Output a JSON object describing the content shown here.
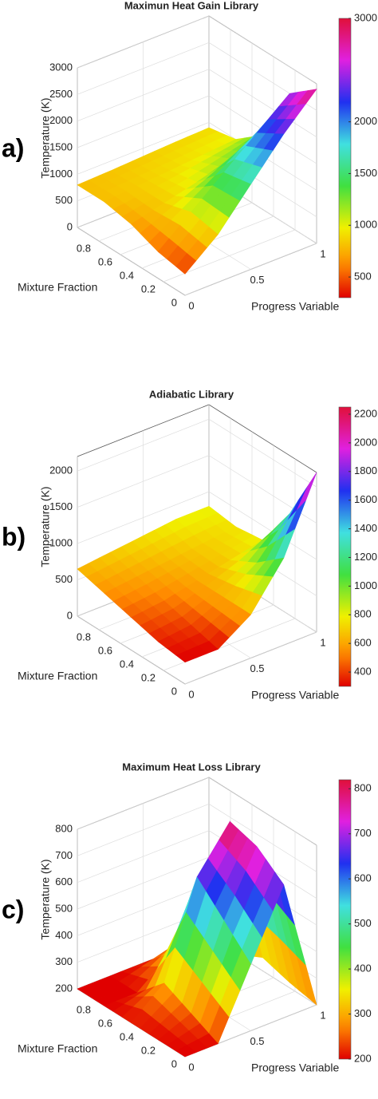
{
  "chart_data": [
    {
      "type": "surface",
      "panel_label": "a)",
      "title": "Maximun Heat Gain Library",
      "xlabel": "Progress Variable",
      "ylabel": "Mixture Fraction",
      "zlabel": "Temperature (K)",
      "x": [
        0,
        0.25,
        0.5,
        0.75,
        1
      ],
      "y": [
        0,
        0.25,
        0.5,
        0.75,
        1
      ],
      "z": [
        [
          400,
          900,
          1600,
          2300,
          2900
        ],
        [
          500,
          1000,
          1500,
          2000,
          2500
        ],
        [
          700,
          850,
          1000,
          1200,
          1400
        ],
        [
          800,
          850,
          900,
          950,
          1000
        ],
        [
          800,
          820,
          850,
          880,
          900
        ]
      ],
      "xlim": [
        0,
        1
      ],
      "ylim": [
        0,
        1
      ],
      "zlim": [
        0,
        3000
      ],
      "xticks": [
        0,
        0.5,
        1
      ],
      "yticks": [
        0,
        0.2,
        0.4,
        0.6,
        0.8
      ],
      "zticks": [
        0,
        500,
        1000,
        1500,
        2000,
        2500,
        3000
      ],
      "clim": [
        300,
        3000
      ],
      "cticks": [
        3000,
        2000,
        1500,
        1000,
        500
      ],
      "grid": true
    },
    {
      "type": "surface",
      "panel_label": "b)",
      "title": "Adiabatic Library",
      "xlabel": "Progress Variable",
      "ylabel": "Mixture Fraction",
      "zlabel": "Temperature (K)",
      "x": [
        0,
        0.25,
        0.5,
        0.75,
        1
      ],
      "y": [
        0,
        0.25,
        0.5,
        0.75,
        1
      ],
      "z": [
        [
          300,
          300,
          600,
          1200,
          2200
        ],
        [
          350,
          400,
          600,
          900,
          1400
        ],
        [
          450,
          500,
          600,
          700,
          800
        ],
        [
          550,
          600,
          650,
          700,
          750
        ],
        [
          650,
          700,
          750,
          800,
          800
        ]
      ],
      "xlim": [
        0,
        1
      ],
      "ylim": [
        0,
        1
      ],
      "zlim": [
        0,
        2200
      ],
      "xticks": [
        0,
        0.5,
        1
      ],
      "yticks": [
        0,
        0.2,
        0.4,
        0.6,
        0.8
      ],
      "zticks": [
        0,
        500,
        1000,
        1500,
        2000
      ],
      "clim": [
        300,
        2250
      ],
      "cticks": [
        2200,
        2000,
        1800,
        1600,
        1400,
        1200,
        1000,
        800,
        600,
        400
      ],
      "grid": true
    },
    {
      "type": "surface",
      "panel_label": "c)",
      "title": "Maximum Heat Loss Library",
      "xlabel": "Progress Variable",
      "ylabel": "Mixture Fraction",
      "zlabel": "Temperature (K)",
      "x": [
        0,
        0.25,
        0.5,
        0.75,
        1
      ],
      "y": [
        0,
        0.25,
        0.5,
        0.75,
        1
      ],
      "z": [
        [
          200,
          200,
          450,
          700,
          200
        ],
        [
          200,
          250,
          550,
          780,
          220
        ],
        [
          200,
          300,
          650,
          810,
          250
        ],
        [
          200,
          200,
          300,
          400,
          200
        ],
        [
          200,
          200,
          200,
          200,
          200
        ]
      ],
      "xlim": [
        0,
        1
      ],
      "ylim": [
        0,
        1
      ],
      "zlim": [
        200,
        800
      ],
      "xticks": [
        0,
        0.5,
        1
      ],
      "yticks": [
        0,
        0.2,
        0.4,
        0.6,
        0.8
      ],
      "zticks": [
        200,
        300,
        400,
        500,
        600,
        700,
        800
      ],
      "clim": [
        200,
        820
      ],
      "cticks": [
        800,
        700,
        600,
        500,
        400,
        300,
        200
      ],
      "grid": true
    }
  ]
}
